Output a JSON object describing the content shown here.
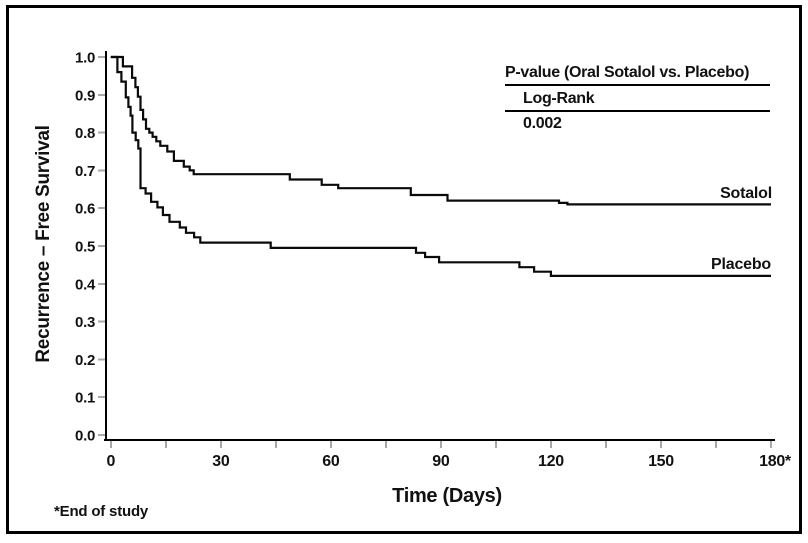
{
  "figure": {
    "description": "Kaplan-Meier recurrence-free survival plot, Oral Sotalol vs. Placebo"
  },
  "annotation": {
    "title": "P-value (Oral Sotalol vs. Placebo)",
    "test_label": "Log-Rank",
    "p_value": "0.002"
  },
  "footnote": "*End of study",
  "chart_data": {
    "type": "line",
    "subtype": "kaplan_meier_step",
    "title": "",
    "xlabel": "Time (Days)",
    "ylabel": "Recurrence – Free Survival",
    "xlim": [
      0,
      180
    ],
    "ylim": [
      0.0,
      1.0
    ],
    "grid": false,
    "x_major_tick_values": [
      0,
      30,
      60,
      90,
      120,
      150,
      180
    ],
    "x_tick_labels": [
      "0",
      "30",
      "60",
      "90",
      "120",
      "150",
      "180*"
    ],
    "x_minor_tick_step": 15,
    "y_tick_values": [
      0.0,
      0.1,
      0.2,
      0.3,
      0.4,
      0.5,
      0.6,
      0.7,
      0.8,
      0.9,
      1.0
    ],
    "y_tick_labels": [
      "0.0",
      "0.1",
      "0.2",
      "0.3",
      "0.4",
      "0.5",
      "0.6",
      "0.7",
      "0.8",
      "0.9",
      "1.0"
    ],
    "axis_color": "#000000",
    "tick_color": "#a9a9a9",
    "line_color": "#0a0a0a",
    "legend_position": "labels-at-line-end-right",
    "series": [
      {
        "name": "Sotalol",
        "final_value": 0.61,
        "end_of_followup_day": 180,
        "steps": [
          [
            0,
            1.0
          ],
          [
            3.3,
            0.975
          ],
          [
            5.8,
            0.945
          ],
          [
            6.7,
            0.92
          ],
          [
            7.4,
            0.895
          ],
          [
            8.1,
            0.86
          ],
          [
            8.8,
            0.835
          ],
          [
            9.6,
            0.81
          ],
          [
            10.5,
            0.8
          ],
          [
            11.4,
            0.789
          ],
          [
            12.4,
            0.777
          ],
          [
            13.5,
            0.765
          ],
          [
            15.4,
            0.75
          ],
          [
            17.2,
            0.725
          ],
          [
            19.9,
            0.71
          ],
          [
            21.5,
            0.7
          ],
          [
            22.6,
            0.69
          ],
          [
            48.8,
            0.676
          ],
          [
            57.5,
            0.662
          ],
          [
            62,
            0.653
          ],
          [
            81.8,
            0.635
          ],
          [
            91.8,
            0.62
          ],
          [
            122.2,
            0.614
          ],
          [
            124.5,
            0.61
          ]
        ]
      },
      {
        "name": "Placebo",
        "final_value": 0.42,
        "end_of_followup_day": 180,
        "steps": [
          [
            0,
            1.0
          ],
          [
            1.8,
            0.96
          ],
          [
            2.9,
            0.935
          ],
          [
            4.1,
            0.893
          ],
          [
            4.8,
            0.868
          ],
          [
            5.4,
            0.845
          ],
          [
            5.9,
            0.8
          ],
          [
            6.8,
            0.78
          ],
          [
            7.5,
            0.758
          ],
          [
            8.1,
            0.653
          ],
          [
            9.5,
            0.639
          ],
          [
            11,
            0.617
          ],
          [
            12.7,
            0.602
          ],
          [
            14.2,
            0.582
          ],
          [
            16,
            0.564
          ],
          [
            18.8,
            0.549
          ],
          [
            20.5,
            0.535
          ],
          [
            22.7,
            0.523
          ],
          [
            24.4,
            0.509
          ],
          [
            43.6,
            0.495
          ],
          [
            83.2,
            0.482
          ],
          [
            85.7,
            0.471
          ],
          [
            89.5,
            0.457
          ],
          [
            111.4,
            0.444
          ],
          [
            115.4,
            0.432
          ],
          [
            120,
            0.421
          ]
        ]
      }
    ]
  }
}
